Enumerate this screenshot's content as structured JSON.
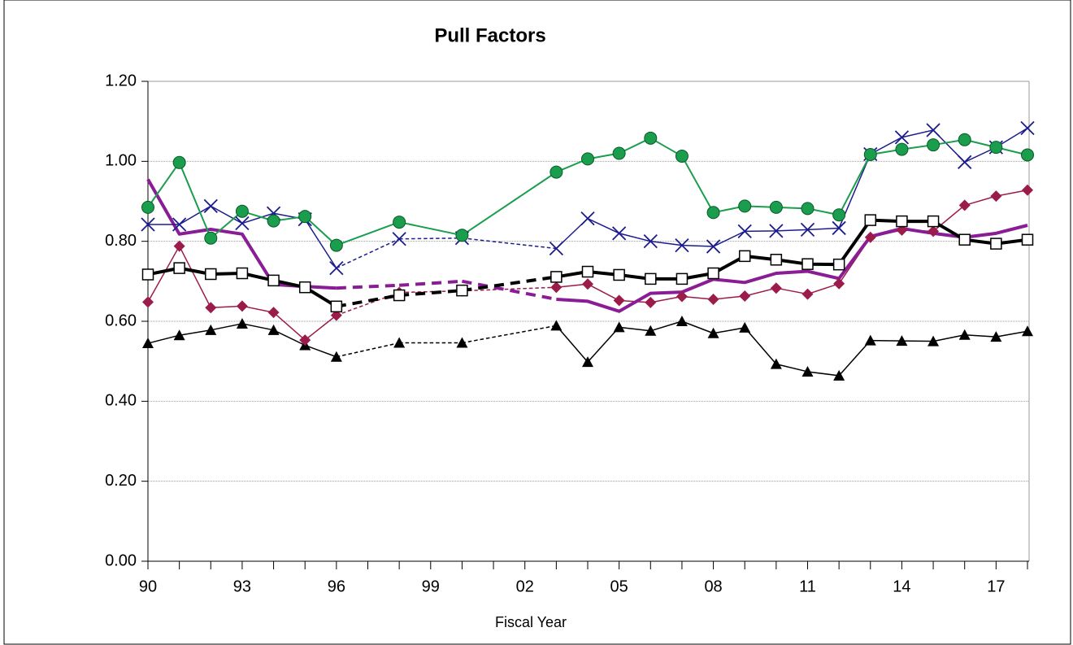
{
  "chart_data": {
    "type": "line",
    "title": "Pull Factors",
    "x_label": "Fiscal Year",
    "categories": [
      "90",
      null,
      null,
      "93",
      null,
      null,
      "96",
      null,
      null,
      "99",
      null,
      null,
      "02",
      null,
      null,
      "05",
      null,
      null,
      "08",
      null,
      null,
      "11",
      null,
      null,
      "14",
      null,
      null,
      "17",
      null
    ],
    "ylim": [
      0,
      1.2
    ],
    "yticks": [
      {
        "value": 0,
        "label": "0.00"
      },
      {
        "value": 0.2,
        "label": "0.20"
      },
      {
        "value": 0.4,
        "label": "0.40"
      },
      {
        "value": 0.6,
        "label": "0.60"
      },
      {
        "value": 0.8,
        "label": "0.80"
      },
      {
        "value": 1.0,
        "label": "1.00"
      },
      {
        "value": 1.2,
        "label": "1.20"
      }
    ],
    "grid": true,
    "series": [
      {
        "color": "#000000",
        "marker": "triangle",
        "line_width": 1.5,
        "gap_style": "dashed",
        "values": [
          0.545,
          0.565,
          0.578,
          0.594,
          0.578,
          0.54,
          0.511,
          null,
          0.546,
          null,
          0.546,
          null,
          null,
          0.589,
          0.498,
          0.585,
          0.576,
          0.6,
          0.57,
          0.584,
          0.493,
          0.474,
          0.464,
          0.552,
          0.551,
          0.55,
          0.566,
          0.561,
          0.575
        ]
      },
      {
        "color": "#9b1b4b",
        "marker": "diamond",
        "line_width": 1.5,
        "gap_style": "dashed",
        "values": [
          0.648,
          0.788,
          0.634,
          0.638,
          0.622,
          0.553,
          0.615,
          null,
          0.672,
          null,
          0.676,
          null,
          null,
          0.685,
          0.693,
          0.652,
          0.647,
          0.662,
          0.655,
          0.663,
          0.683,
          0.668,
          0.694,
          0.81,
          0.828,
          0.825,
          0.89,
          0.913,
          0.928
        ]
      },
      {
        "color": "#8a1c96",
        "marker": "none",
        "line_width": 4,
        "gap_style": "dashed",
        "values": [
          0.955,
          0.818,
          0.83,
          0.818,
          0.692,
          0.687,
          0.683,
          null,
          0.69,
          null,
          0.7,
          null,
          null,
          0.655,
          0.65,
          0.625,
          0.67,
          0.673,
          0.705,
          0.697,
          0.72,
          0.725,
          0.707,
          0.812,
          0.832,
          0.82,
          0.81,
          0.82,
          0.84
        ]
      },
      {
        "color": "#000000",
        "marker": "square",
        "line_width": 4,
        "gap_style": "dashed",
        "values": [
          0.717,
          0.733,
          0.718,
          0.72,
          0.702,
          0.685,
          0.637,
          null,
          0.665,
          null,
          0.677,
          null,
          null,
          0.711,
          0.724,
          0.716,
          0.706,
          0.706,
          0.72,
          0.763,
          0.754,
          0.743,
          0.742,
          0.853,
          0.85,
          0.85,
          0.804,
          0.794,
          0.804
        ]
      },
      {
        "color": "#1c1c8c",
        "marker": "cross",
        "line_width": 1.5,
        "gap_style": "dashed",
        "values": [
          0.842,
          0.842,
          0.888,
          0.845,
          0.87,
          0.855,
          0.733,
          null,
          0.806,
          null,
          0.808,
          null,
          null,
          0.782,
          0.857,
          0.82,
          0.8,
          0.79,
          0.787,
          0.825,
          0.826,
          0.829,
          0.833,
          1.018,
          1.06,
          1.078,
          0.998,
          1.035,
          1.083
        ]
      },
      {
        "color": "#1a9e4e",
        "marker": "circle",
        "line_width": 2,
        "gap_style": "solid",
        "values": [
          0.885,
          0.997,
          0.808,
          0.875,
          0.851,
          0.862,
          0.79,
          null,
          0.848,
          null,
          0.815,
          null,
          null,
          0.973,
          1.006,
          1.02,
          1.058,
          1.013,
          0.872,
          0.888,
          0.885,
          0.882,
          0.866,
          1.017,
          1.03,
          1.041,
          1.054,
          1.035,
          1.016
        ]
      }
    ]
  }
}
